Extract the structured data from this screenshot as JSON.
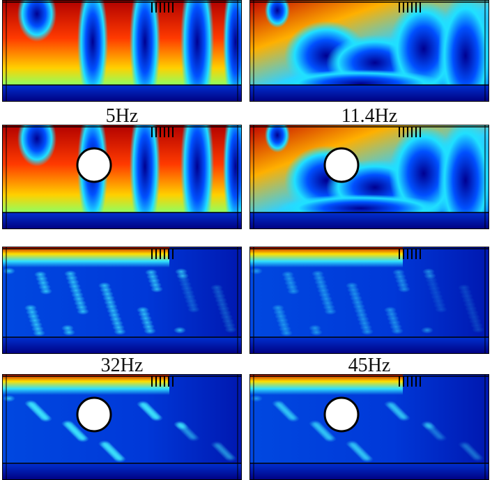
{
  "figure": {
    "labels": [
      "5Hz",
      "11.4Hz",
      "32Hz",
      "45Hz"
    ]
  }
}
